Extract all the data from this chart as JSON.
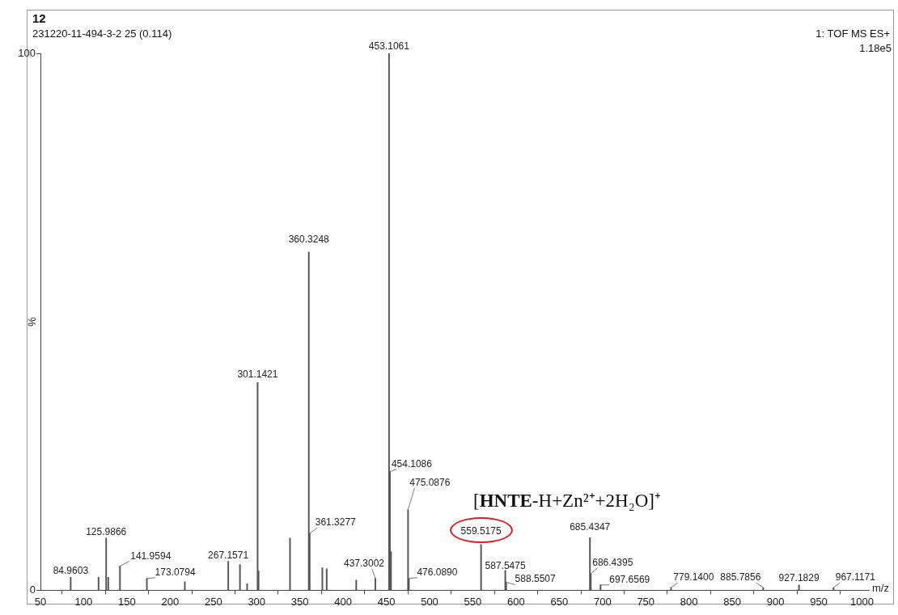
{
  "chart_data": {
    "type": "bar",
    "title": "12",
    "subtitle": "231220-11-494-3-2 25 (0.114)",
    "xlabel": "m/z",
    "ylabel": "%",
    "x": [
      84.9603,
      117.2,
      125.9866,
      128.4,
      141.9594,
      173.0794,
      217,
      267.1571,
      280.7,
      289,
      301.1421,
      302.2,
      338.6,
      360.3248,
      361.3277,
      376,
      381,
      415.2,
      437.3002,
      453.1061,
      454.1086,
      455.4,
      475.0876,
      476.089,
      559.5175,
      587.5475,
      588.5507,
      685.4347,
      686.4395,
      697.6569,
      779.14,
      885.7856,
      927.1829,
      967.1171
    ],
    "values": [
      2.4,
      2.4,
      9.7,
      2.4,
      4.5,
      2.2,
      1.6,
      5.4,
      4.8,
      1.2,
      38.7,
      3.6,
      9.7,
      63,
      10.6,
      4.2,
      4.0,
      1.9,
      2.2,
      100,
      22.1,
      7.2,
      15,
      2.2,
      8.5,
      3.7,
      1.5,
      9.8,
      3.1,
      1.0,
      0.5,
      0.5,
      1.0,
      0.5
    ],
    "color": "#555555",
    "xlim": [
      50,
      1008
    ],
    "xticks": [
      50,
      100,
      150,
      200,
      250,
      300,
      350,
      400,
      450,
      500,
      550,
      600,
      650,
      700,
      750,
      800,
      850,
      900,
      950,
      1000
    ],
    "ylim": [
      0,
      100
    ],
    "yticks": [
      0,
      100
    ],
    "grid": false,
    "annotations": [
      "1: TOF MS ES+",
      "1.18e5",
      "[HNTE-H+Zn²⁺+2H₂O]⁺",
      {
        "text": "84.9603",
        "x": 84.9603,
        "y": 2.4
      },
      {
        "text": "125.9866",
        "x": 125.9866,
        "y": 9.7
      },
      {
        "text": "141.9594",
        "x": 141.9594,
        "y": 4.5
      },
      {
        "text": "173.0794",
        "x": 173.0794,
        "y": 2.2
      },
      {
        "text": "267.1571",
        "x": 267.1571,
        "y": 5.4
      },
      {
        "text": "301.1421",
        "x": 301.1421,
        "y": 38.7
      },
      {
        "text": "360.3248",
        "x": 360.3248,
        "y": 63
      },
      {
        "text": "361.3277",
        "x": 361.3277,
        "y": 10.6
      },
      {
        "text": "437.3002",
        "x": 437.3002,
        "y": 2.2
      },
      {
        "text": "453.1061",
        "x": 453.1061,
        "y": 100
      },
      {
        "text": "454.1086",
        "x": 454.1086,
        "y": 22.1
      },
      {
        "text": "475.0876",
        "x": 475.0876,
        "y": 15
      },
      {
        "text": "476.0890",
        "x": 476.089,
        "y": 2.2
      },
      {
        "text": "559.5175",
        "x": 559.5175,
        "y": 8.5
      },
      {
        "text": "587.5475",
        "x": 587.5475,
        "y": 3.7
      },
      {
        "text": "588.5507",
        "x": 588.5507,
        "y": 1.5
      },
      {
        "text": "685.4347",
        "x": 685.4347,
        "y": 9.8
      },
      {
        "text": "686.4395",
        "x": 686.4395,
        "y": 3.1
      },
      {
        "text": "697.6569",
        "x": 697.6569,
        "y": 1.0
      },
      {
        "text": "779.1400",
        "x": 779.14,
        "y": 0.5
      },
      {
        "text": "885.7856",
        "x": 885.7856,
        "y": 0.5
      },
      {
        "text": "927.1829",
        "x": 927.1829,
        "y": 1.0
      },
      {
        "text": "967.1171",
        "x": 967.1171,
        "y": 0.5
      }
    ]
  }
}
